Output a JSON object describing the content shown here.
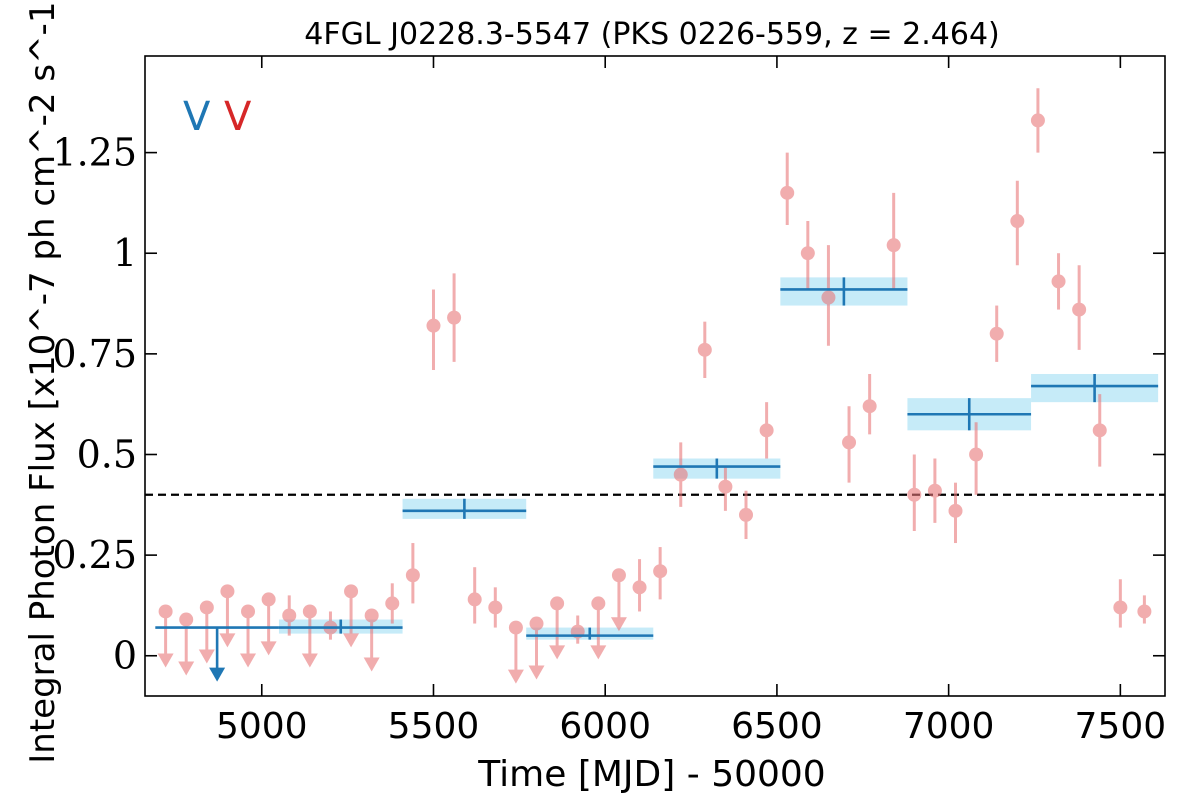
{
  "chart_data": {
    "type": "scatter",
    "title": "4FGL J0228.3-5547 (PKS 0226-559, z = 2.464)",
    "xlabel": "Time [MJD] - 50000",
    "ylabel": "Integral Photon Flux [x10^-7 ph cm^-2 s^-1]",
    "xlim": [
      4660,
      7630
    ],
    "ylim": [
      -0.1,
      1.49
    ],
    "x_ticks": [
      5000,
      5500,
      6000,
      6500,
      7000,
      7500
    ],
    "x_tick_labels": [
      "5000",
      "5500",
      "6000",
      "6500",
      "7000",
      "7500"
    ],
    "y_ticks": [
      0,
      0.25,
      0.5,
      0.75,
      1,
      1.25
    ],
    "y_tick_labels": [
      "0",
      "0.25",
      "0.5",
      "0.75",
      "1",
      "1.25"
    ],
    "grid": false,
    "annotations": [
      {
        "text": "V",
        "color": "#1f77b4"
      },
      {
        "text": "V",
        "color": "#d62728"
      }
    ],
    "reference_line": {
      "y": 0.4,
      "style": "dashed",
      "color": "#000000"
    },
    "series": [
      {
        "color": "#e8777a",
        "points": [
          {
            "x": 4720,
            "y": 0.11,
            "ul": true
          },
          {
            "x": 4780,
            "y": 0.09,
            "ul": true
          },
          {
            "x": 4840,
            "y": 0.12,
            "ul": true
          },
          {
            "x": 4900,
            "y": 0.16,
            "ul": true
          },
          {
            "x": 4960,
            "y": 0.11,
            "ul": true
          },
          {
            "x": 5020,
            "y": 0.14,
            "ul": true
          },
          {
            "x": 5080,
            "y": 0.1,
            "lo": 0.05,
            "hi": 0.15
          },
          {
            "x": 5140,
            "y": 0.11,
            "ul": true
          },
          {
            "x": 5200,
            "y": 0.07,
            "lo": 0.04,
            "hi": 0.11
          },
          {
            "x": 5260,
            "y": 0.16,
            "ul": true
          },
          {
            "x": 5320,
            "y": 0.1,
            "ul": true
          },
          {
            "x": 5380,
            "y": 0.13,
            "lo": 0.08,
            "hi": 0.18
          },
          {
            "x": 5440,
            "y": 0.2,
            "lo": 0.13,
            "hi": 0.28
          },
          {
            "x": 5500,
            "y": 0.82,
            "lo": 0.71,
            "hi": 0.91
          },
          {
            "x": 5560,
            "y": 0.84,
            "lo": 0.73,
            "hi": 0.95
          },
          {
            "x": 5620,
            "y": 0.14,
            "lo": 0.08,
            "hi": 0.22
          },
          {
            "x": 5680,
            "y": 0.12,
            "lo": 0.07,
            "hi": 0.17
          },
          {
            "x": 5740,
            "y": 0.07,
            "ul": true
          },
          {
            "x": 5800,
            "y": 0.08,
            "ul": true
          },
          {
            "x": 5860,
            "y": 0.13,
            "ul": true
          },
          {
            "x": 5920,
            "y": 0.06,
            "lo": 0.03,
            "hi": 0.1
          },
          {
            "x": 5980,
            "y": 0.13,
            "ul": true
          },
          {
            "x": 6040,
            "y": 0.2,
            "ul": true
          },
          {
            "x": 6100,
            "y": 0.17,
            "lo": 0.11,
            "hi": 0.24
          },
          {
            "x": 6160,
            "y": 0.21,
            "lo": 0.14,
            "hi": 0.27
          },
          {
            "x": 6220,
            "y": 0.45,
            "lo": 0.37,
            "hi": 0.53
          },
          {
            "x": 6290,
            "y": 0.76,
            "lo": 0.69,
            "hi": 0.83
          },
          {
            "x": 6350,
            "y": 0.42,
            "lo": 0.36,
            "hi": 0.47
          },
          {
            "x": 6410,
            "y": 0.35,
            "lo": 0.29,
            "hi": 0.41
          },
          {
            "x": 6470,
            "y": 0.56,
            "lo": 0.49,
            "hi": 0.63
          },
          {
            "x": 6530,
            "y": 1.15,
            "lo": 1.07,
            "hi": 1.25
          },
          {
            "x": 6590,
            "y": 1.0,
            "lo": 0.91,
            "hi": 1.08
          },
          {
            "x": 6650,
            "y": 0.89,
            "lo": 0.77,
            "hi": 1.02
          },
          {
            "x": 6710,
            "y": 0.53,
            "lo": 0.43,
            "hi": 0.62
          },
          {
            "x": 6770,
            "y": 0.62,
            "lo": 0.55,
            "hi": 0.7
          },
          {
            "x": 6840,
            "y": 1.02,
            "lo": 0.91,
            "hi": 1.15
          },
          {
            "x": 6900,
            "y": 0.4,
            "lo": 0.31,
            "hi": 0.5
          },
          {
            "x": 6960,
            "y": 0.41,
            "lo": 0.33,
            "hi": 0.49
          },
          {
            "x": 7020,
            "y": 0.36,
            "lo": 0.28,
            "hi": 0.43
          },
          {
            "x": 7080,
            "y": 0.5,
            "lo": 0.4,
            "hi": 0.58
          },
          {
            "x": 7140,
            "y": 0.8,
            "lo": 0.73,
            "hi": 0.87
          },
          {
            "x": 7200,
            "y": 1.08,
            "lo": 0.97,
            "hi": 1.18
          },
          {
            "x": 7260,
            "y": 1.33,
            "lo": 1.25,
            "hi": 1.41
          },
          {
            "x": 7320,
            "y": 0.93,
            "lo": 0.86,
            "hi": 1.0
          },
          {
            "x": 7380,
            "y": 0.86,
            "lo": 0.76,
            "hi": 0.97
          },
          {
            "x": 7440,
            "y": 0.56,
            "lo": 0.47,
            "hi": 0.65
          },
          {
            "x": 7500,
            "y": 0.12,
            "lo": 0.07,
            "hi": 0.19
          },
          {
            "x": 7570,
            "y": 0.11,
            "lo": 0.08,
            "hi": 0.15
          }
        ]
      },
      {
        "color": "#1f77b4",
        "band_color": "#c6ebf8",
        "bins": [
          {
            "x0": 4690,
            "x1": 5050,
            "y": 0.07,
            "ul": true,
            "xc": 4870
          },
          {
            "x0": 5050,
            "x1": 5410,
            "y": 0.07,
            "lo": 0.055,
            "hi": 0.09,
            "xc": 5230
          },
          {
            "x0": 5410,
            "x1": 5770,
            "y": 0.36,
            "lo": 0.34,
            "hi": 0.39,
            "xc": 5590
          },
          {
            "x0": 5770,
            "x1": 6140,
            "y": 0.05,
            "lo": 0.04,
            "hi": 0.07,
            "xc": 5955
          },
          {
            "x0": 6140,
            "x1": 6510,
            "y": 0.47,
            "lo": 0.44,
            "hi": 0.49,
            "xc": 6325
          },
          {
            "x0": 6510,
            "x1": 6880,
            "y": 0.91,
            "lo": 0.87,
            "hi": 0.94,
            "xc": 6695
          },
          {
            "x0": 6880,
            "x1": 7240,
            "y": 0.6,
            "lo": 0.56,
            "hi": 0.64,
            "xc": 7060
          },
          {
            "x0": 7240,
            "x1": 7610,
            "y": 0.67,
            "lo": 0.63,
            "hi": 0.7,
            "xc": 7425
          }
        ]
      }
    ]
  }
}
